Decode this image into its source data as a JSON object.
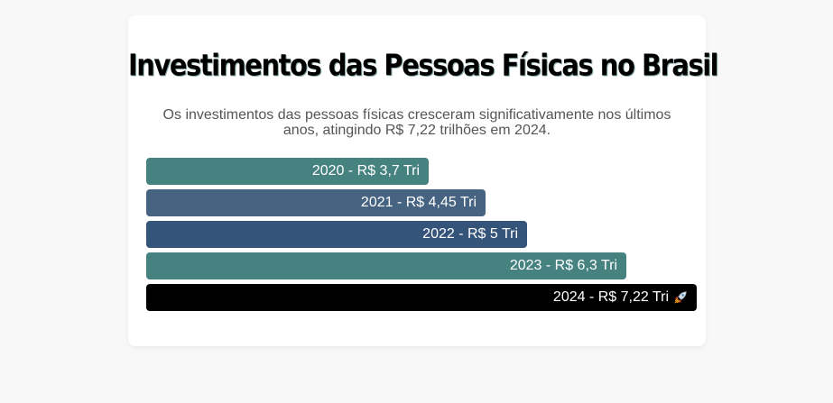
{
  "chart_data": {
    "type": "bar",
    "orientation": "horizontal",
    "title": "Investimentos das Pessoas Físicas no Brasil",
    "subtitle": "Os investimentos das pessoas físicas cresceram significativamente nos últimos anos, atingindo R$ 7,22 trilhões em 2024.",
    "categories": [
      "2020",
      "2021",
      "2022",
      "2023",
      "2024"
    ],
    "values": [
      3.7,
      4.45,
      5,
      6.3,
      7.22
    ],
    "labels": [
      "2020 - R$ 3,7 Tri",
      "2021 - R$ 4,45 Tri",
      "2022 - R$ 5 Tri",
      "2023 - R$ 6,3 Tri",
      "2024 - R$ 7,22 Tri"
    ],
    "colors": [
      "#468280",
      "#466482",
      "#355479",
      "#468280",
      "#000000"
    ],
    "highlight_icon": "rocket-icon",
    "xlim": [
      0,
      7.22
    ]
  }
}
